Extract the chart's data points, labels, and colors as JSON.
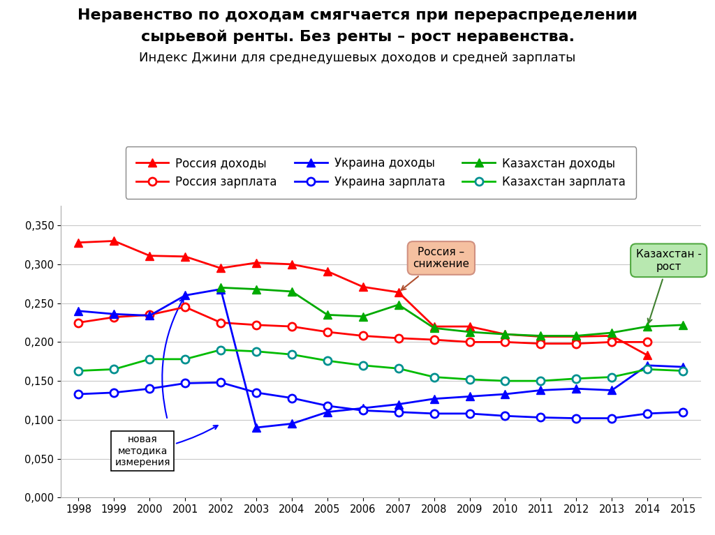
{
  "title_line1": "Неравенство по доходам смягчается при перераспределении",
  "title_line2": "сырьевой ренты. Без ренты – рост неравенства.",
  "title_line3": "Индекс Джини для среднедушевых доходов и средней зарплаты",
  "years": [
    1998,
    1999,
    2000,
    2001,
    2002,
    2003,
    2004,
    2005,
    2006,
    2007,
    2008,
    2009,
    2010,
    2011,
    2012,
    2013,
    2014,
    2015
  ],
  "russia_income": [
    0.328,
    0.33,
    0.311,
    0.31,
    0.295,
    0.302,
    0.3,
    0.291,
    0.271,
    0.264,
    0.22,
    0.22,
    0.21,
    0.207,
    0.207,
    0.208,
    0.183,
    null
  ],
  "russia_salary": [
    0.225,
    0.232,
    0.235,
    0.245,
    0.225,
    0.222,
    0.22,
    0.213,
    0.208,
    0.205,
    0.203,
    0.2,
    0.2,
    0.198,
    0.198,
    0.2,
    0.2,
    null
  ],
  "ukraine_income": [
    0.24,
    0.236,
    0.234,
    0.26,
    0.268,
    0.09,
    0.095,
    0.11,
    0.115,
    0.12,
    0.127,
    0.13,
    0.133,
    0.138,
    0.14,
    0.138,
    0.17,
    0.168
  ],
  "ukraine_salary": [
    0.133,
    0.135,
    0.14,
    0.147,
    0.148,
    0.135,
    0.128,
    0.118,
    0.112,
    0.11,
    0.108,
    0.108,
    0.105,
    0.103,
    0.102,
    0.102,
    0.108,
    0.11
  ],
  "kazakh_income": [
    null,
    null,
    null,
    null,
    0.27,
    0.268,
    0.265,
    0.235,
    0.233,
    0.248,
    0.218,
    0.213,
    0.21,
    0.208,
    0.208,
    0.212,
    0.22,
    0.222
  ],
  "kazakh_salary": [
    0.163,
    0.165,
    0.178,
    0.178,
    0.19,
    0.188,
    0.184,
    0.176,
    0.17,
    0.166,
    0.155,
    0.152,
    0.15,
    0.15,
    0.153,
    0.155,
    0.165,
    0.163
  ],
  "ylim": [
    0.0,
    0.375
  ],
  "yticks": [
    0.0,
    0.05,
    0.1,
    0.15,
    0.2,
    0.25,
    0.3,
    0.35
  ],
  "background_color": "#ffffff",
  "grid_color": "#c8c8c8",
  "lw": 2.0,
  "ms": 8
}
